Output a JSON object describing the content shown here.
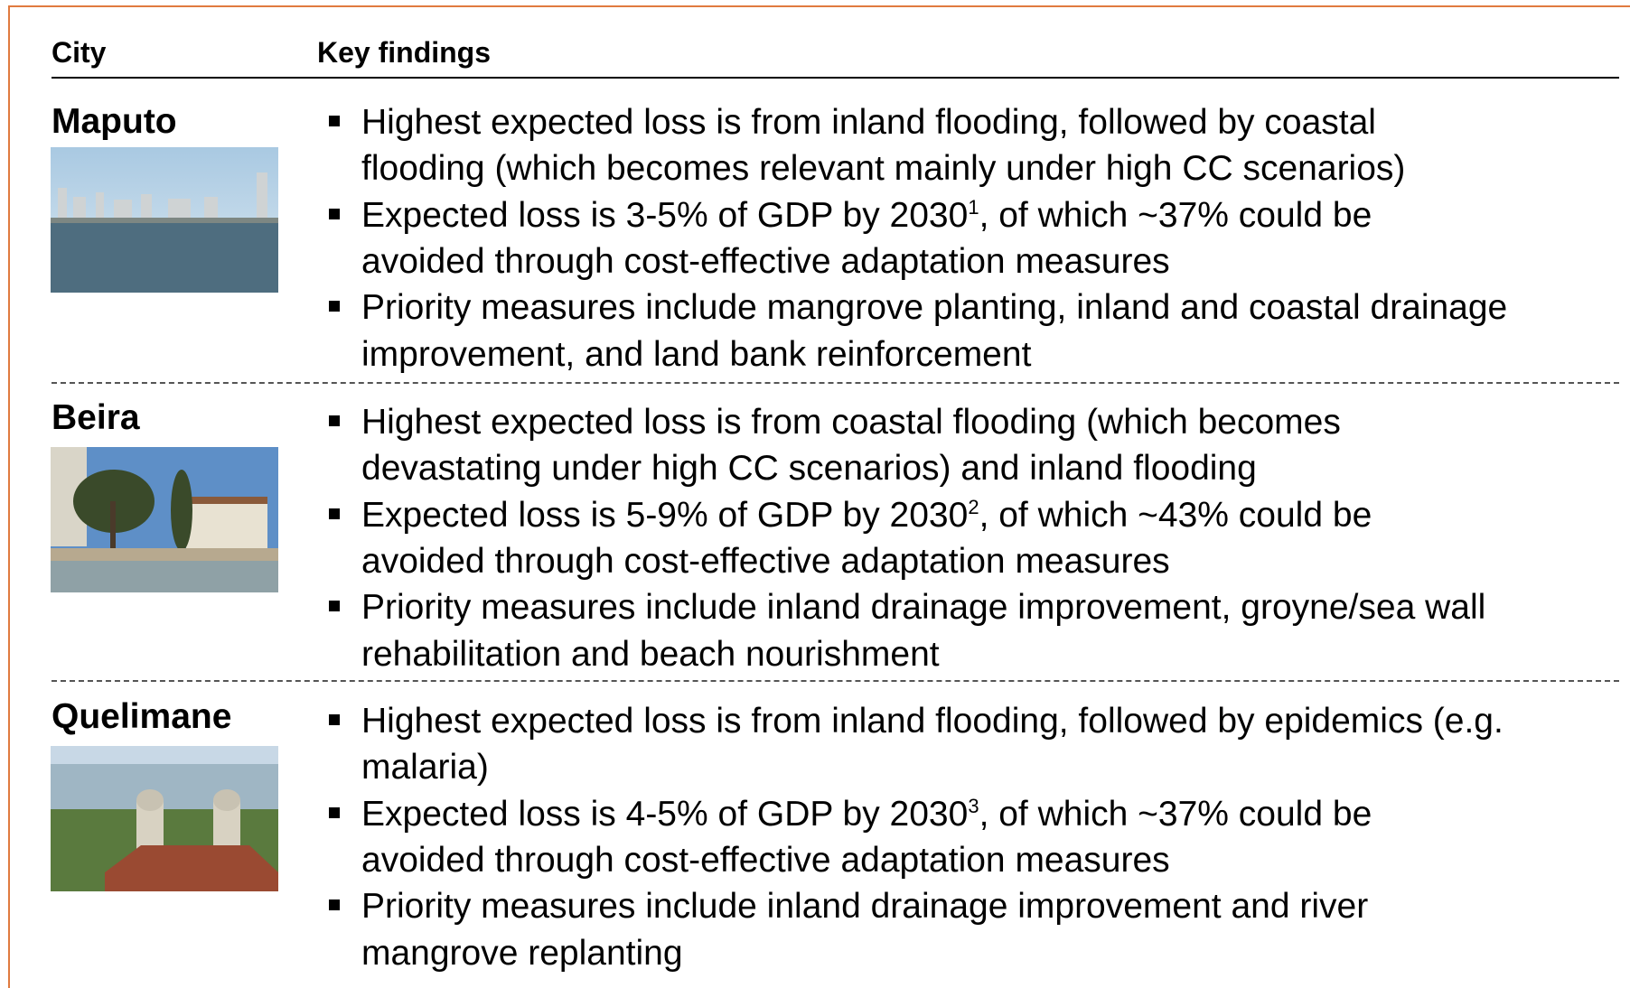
{
  "header": {
    "city": "City",
    "findings": "Key findings"
  },
  "rows": [
    {
      "city": "Maputo",
      "findings": [
        {
          "lines": [
            "Highest expected loss is from inland flooding, followed by coastal",
            "flooding (which becomes relevant mainly under high CC scenarios)"
          ]
        },
        {
          "lines": [
            {
              "before": "Expected loss is 3-5% of GDP by 2030",
              "sup": "1",
              "after": ", of which ~37% could be"
            },
            "avoided through cost-effective adaptation measures"
          ]
        },
        {
          "lines": [
            "Priority measures include mangrove planting, inland and coastal drainage",
            "improvement, and land bank reinforcement"
          ]
        }
      ]
    },
    {
      "city": "Beira",
      "findings": [
        {
          "lines": [
            "Highest expected loss is from coastal flooding (which becomes",
            "devastating under high CC scenarios) and inland flooding"
          ]
        },
        {
          "lines": [
            {
              "before": "Expected loss is 5-9% of GDP by 2030",
              "sup": "2",
              "after": ", of which ~43% could be"
            },
            "avoided through cost-effective adaptation measures"
          ]
        },
        {
          "lines": [
            "Priority measures include inland drainage improvement, groyne/sea wall",
            "rehabilitation and beach nourishment"
          ]
        }
      ]
    },
    {
      "city": "Quelimane",
      "findings": [
        {
          "lines": [
            "Highest expected loss is from inland flooding, followed by epidemics (e.g.",
            "malaria)"
          ]
        },
        {
          "lines": [
            {
              "before": "Expected loss is 4-5% of GDP by 2030",
              "sup": "3",
              "after": ", of which ~37% could be"
            },
            "avoided through cost-effective adaptation measures"
          ]
        },
        {
          "lines": [
            "Priority measures include inland drainage improvement and river",
            "mangrove replanting"
          ]
        }
      ]
    }
  ]
}
